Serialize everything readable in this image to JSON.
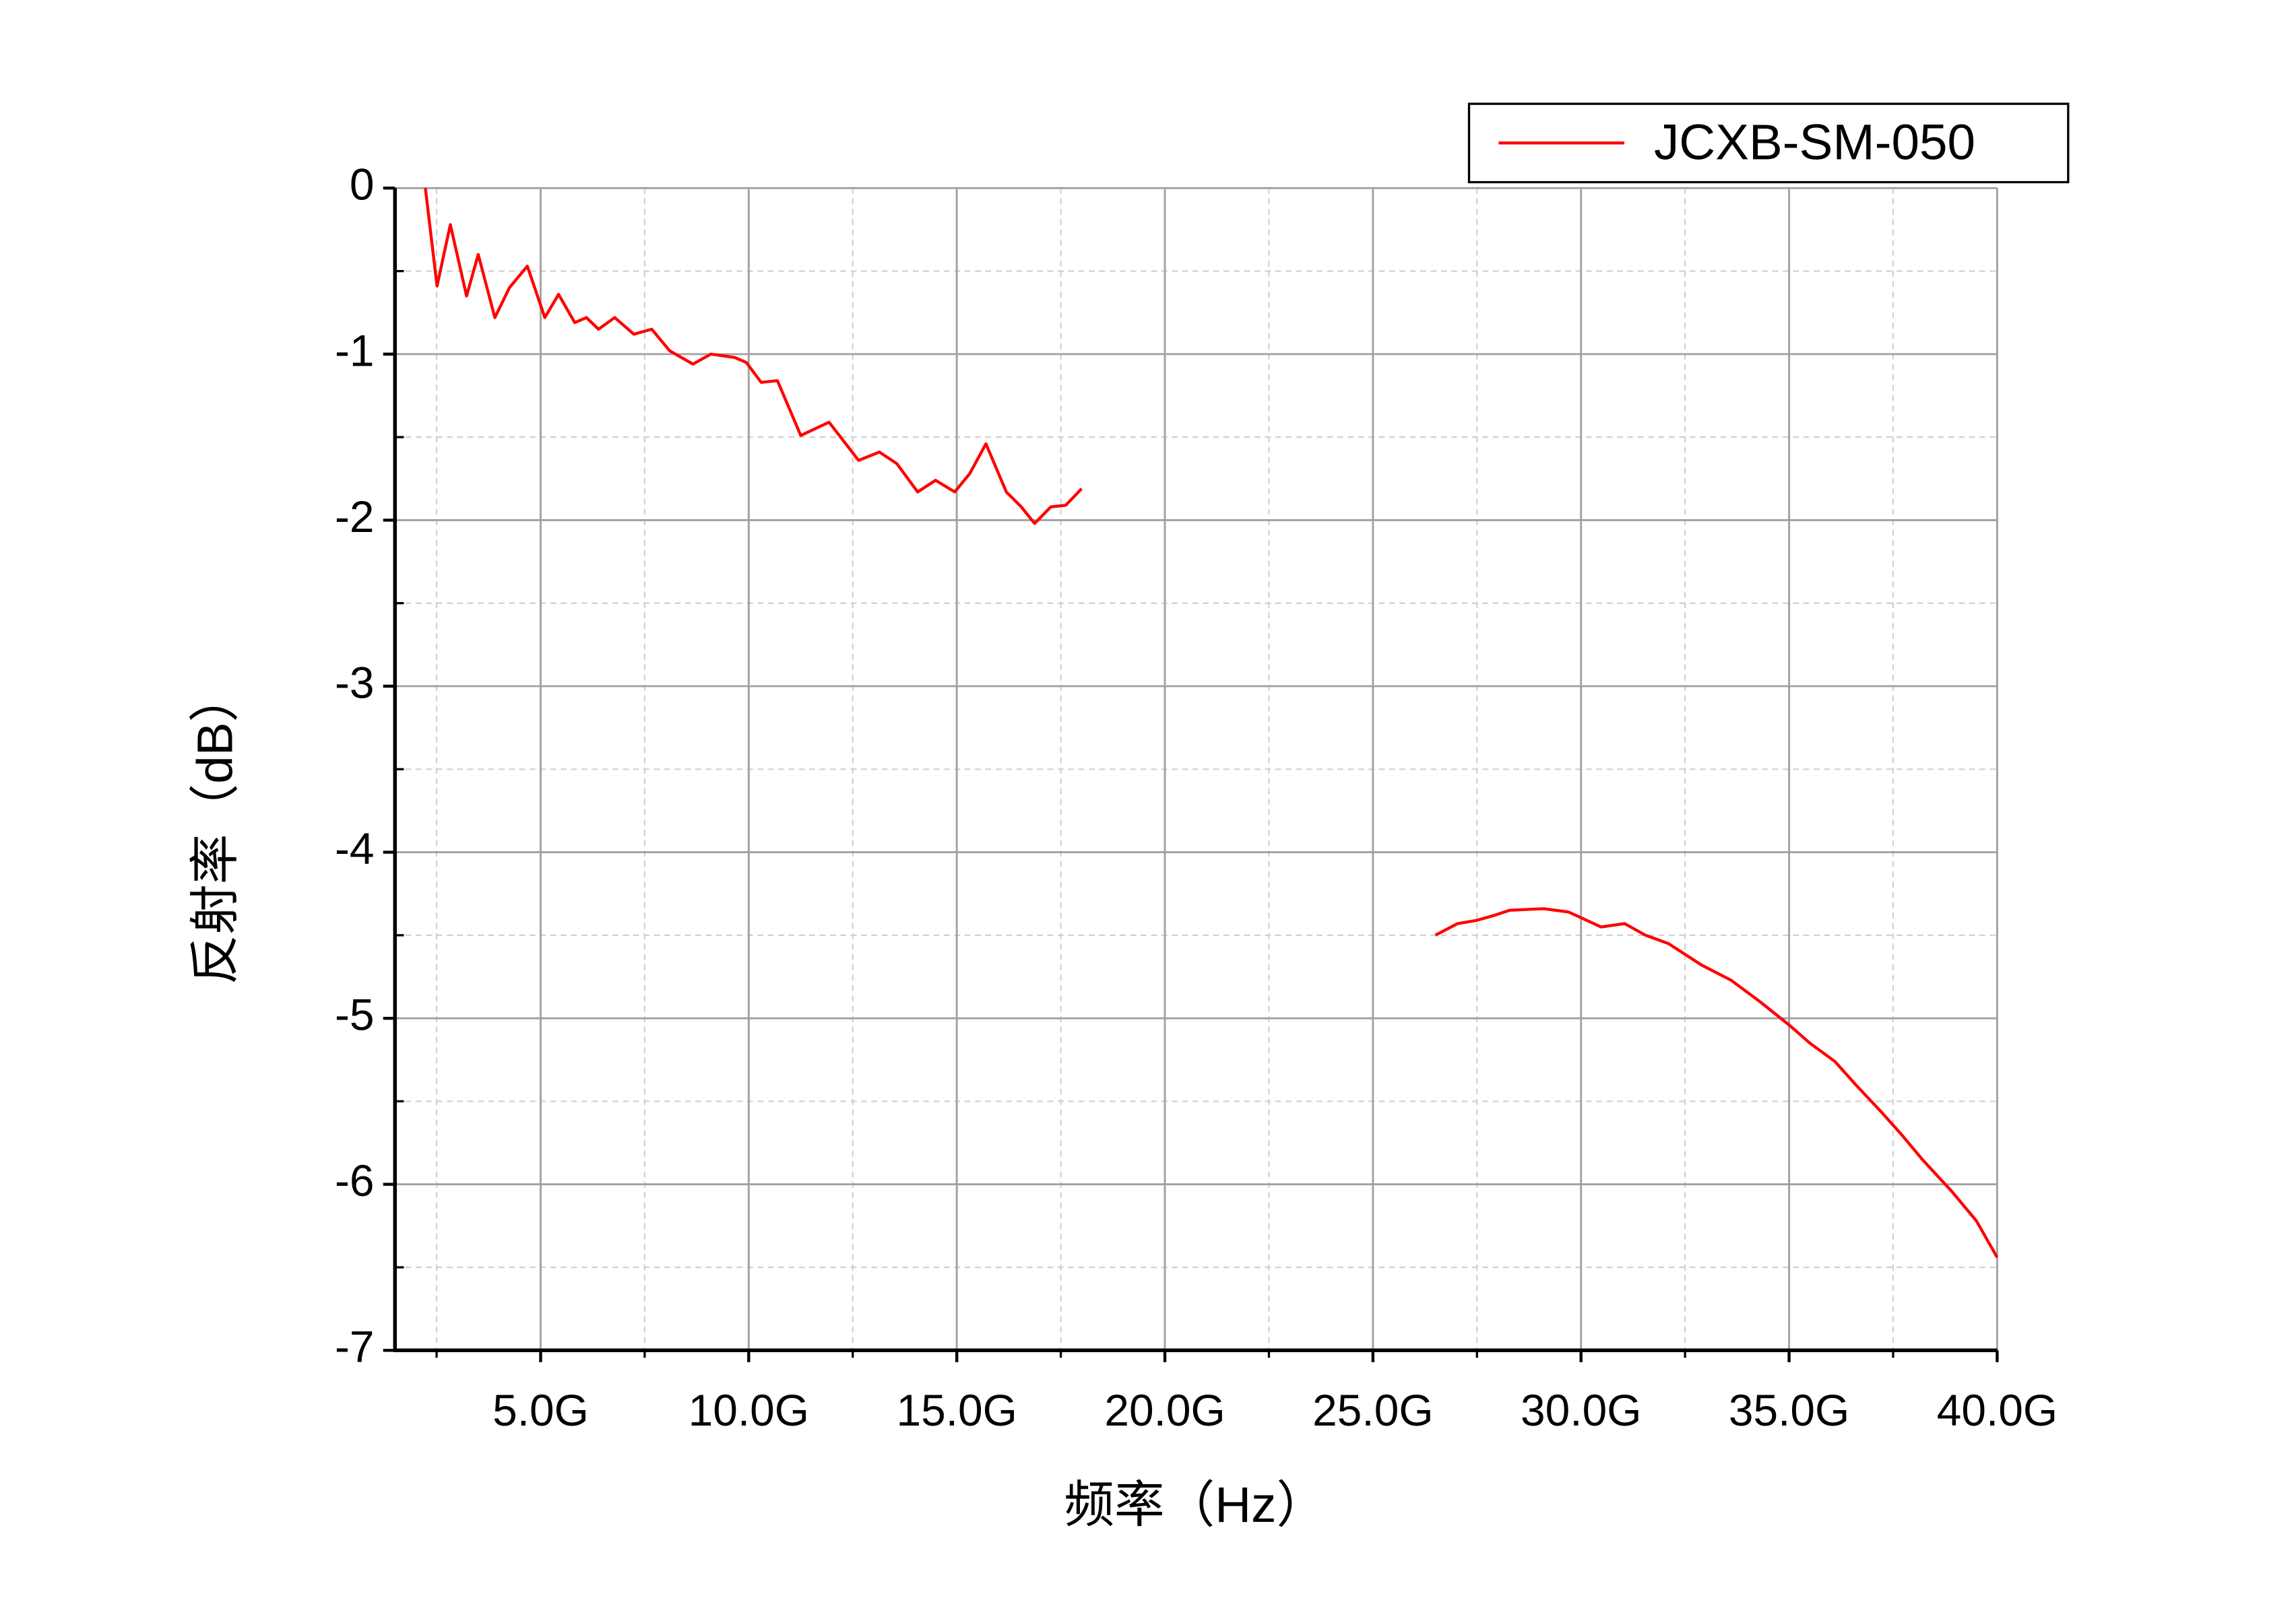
{
  "chart_data": {
    "type": "line",
    "xlabel": "频率（Hz）",
    "ylabel": "反射率（dB）",
    "x": [
      2.23,
      2.51,
      2.83,
      3.22,
      3.5,
      3.9,
      4.25,
      4.68,
      5.1,
      5.43,
      5.82,
      6.1,
      6.39,
      6.78,
      7.24,
      7.67,
      8.1,
      8.66,
      9.09,
      9.66,
      9.94,
      10.3,
      10.69,
      11.25,
      11.93,
      12.64,
      13.14,
      13.56,
      14.06,
      14.49,
      14.95,
      15.31,
      15.7,
      16.19,
      16.55,
      16.87,
      17.26,
      17.62,
      18.0,
      22.0,
      26.5,
      27.03,
      27.5,
      27.92,
      28.28,
      29.1,
      29.7,
      30.05,
      30.48,
      31.05,
      31.55,
      32.1,
      32.9,
      33.6,
      34.3,
      35.0,
      35.5,
      36.1,
      36.6,
      37.2,
      37.7,
      38.2,
      38.9,
      39.5,
      40.0
    ],
    "series": [
      {
        "name": "JCXB-SM-050",
        "color": "#ff0000",
        "values": [
          0,
          -0.59,
          -0.22,
          -0.65,
          -0.4,
          -0.78,
          -0.6,
          -0.47,
          -0.78,
          -0.64,
          -0.81,
          -0.78,
          -0.85,
          -0.78,
          -0.88,
          -0.85,
          -0.98,
          -1.06,
          -1.0,
          -1.02,
          -1.05,
          -1.17,
          -1.16,
          -1.49,
          -1.41,
          -1.64,
          -1.59,
          -1.66,
          -1.83,
          -1.76,
          -1.83,
          -1.72,
          -1.54,
          -1.83,
          -1.92,
          -2.02,
          -1.92,
          -1.91,
          -1.81,
          null,
          -4.5,
          -4.43,
          -4.41,
          -4.38,
          -4.35,
          -4.34,
          -4.36,
          -4.4,
          -4.45,
          -4.43,
          -4.5,
          -4.55,
          -4.68,
          -4.77,
          -4.9,
          -5.04,
          -5.15,
          -5.26,
          -5.4,
          -5.56,
          -5.7,
          -5.85,
          -6.04,
          -6.22,
          -6.44
        ]
      }
    ],
    "xlim": [
      1.5,
      40
    ],
    "ylim": [
      -7,
      0
    ],
    "xticks": [
      {
        "value": 5,
        "label": "5.0G"
      },
      {
        "value": 10,
        "label": "10.0G"
      },
      {
        "value": 15,
        "label": "15.0G"
      },
      {
        "value": 20,
        "label": "20.0G"
      },
      {
        "value": 25,
        "label": "25.0G"
      },
      {
        "value": 30,
        "label": "30.0G"
      },
      {
        "value": 35,
        "label": "35.0G"
      },
      {
        "value": 40,
        "label": "40.0G"
      }
    ],
    "yticks": [
      0,
      -1,
      -2,
      -3,
      -4,
      -5,
      -6,
      -7
    ],
    "xminorticks": [
      2.5,
      7.5,
      12.5,
      17.5,
      22.5,
      27.5,
      32.5,
      37.5
    ],
    "yminorticks": [
      -0.5,
      -1.5,
      -2.5,
      -3.5,
      -4.5,
      -5.5,
      -6.5
    ],
    "grid": true,
    "legend": "upper-right"
  }
}
